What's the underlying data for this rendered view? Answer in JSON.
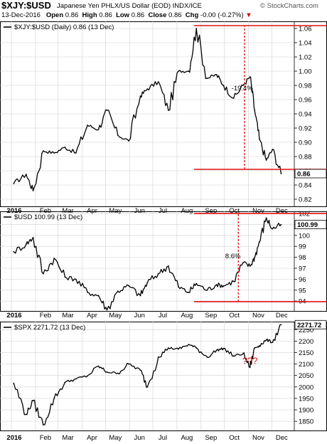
{
  "header": {
    "symbol": "$XJY:$USD",
    "name": "Japanese Yen PHLX/US Dollar (EOD) INDX/ICE",
    "brand": "© StockCharts.com",
    "date": "13-Dec-2016",
    "open_label": "Open",
    "open": "0.86",
    "high_label": "High",
    "high": "0.86",
    "low_label": "Low",
    "low": "0.86",
    "close_label": "Close",
    "close": "0.86",
    "chg_label": "Chg",
    "chg": "-0.00 (-0.27%)",
    "chg_arrow": "▼"
  },
  "colors": {
    "price": "#000000",
    "annotation": "#e01010",
    "grid": "#d0d0d0"
  },
  "chart_data": [
    {
      "type": "line",
      "legend": "$XJY:$USD (Daily) 0.86 (13 Dec)",
      "last_value_label": "0.86",
      "ylim": [
        0.81,
        1.07
      ],
      "yticks": [
        0.82,
        0.84,
        0.86,
        0.88,
        0.9,
        0.92,
        0.94,
        0.96,
        0.98,
        1.0,
        1.02,
        1.04,
        1.06
      ],
      "ytick_labels": [
        "0.82",
        "0.84",
        "0.86",
        "0.88",
        "0.90",
        "0.92",
        "0.94",
        "0.96",
        "0.98",
        "1.00",
        "1.02",
        "1.04",
        "1.06"
      ],
      "x": [
        "2016-01-04",
        "2016-01-20",
        "2016-01-29",
        "2016-02-11",
        "2016-02-25",
        "2016-03-10",
        "2016-03-24",
        "2016-04-08",
        "2016-04-22",
        "2016-05-03",
        "2016-05-17",
        "2016-05-31",
        "2016-06-15",
        "2016-06-24",
        "2016-07-08",
        "2016-07-21",
        "2016-08-03",
        "2016-08-16",
        "2016-08-26",
        "2016-09-09",
        "2016-09-21",
        "2016-09-30",
        "2016-10-13",
        "2016-10-25",
        "2016-11-03",
        "2016-11-09",
        "2016-11-15",
        "2016-11-24",
        "2016-12-02",
        "2016-12-13"
      ],
      "values": [
        0.842,
        0.855,
        0.832,
        0.888,
        0.885,
        0.893,
        0.885,
        0.924,
        0.918,
        0.945,
        0.91,
        0.902,
        0.965,
        0.975,
        0.985,
        0.945,
        1.0,
        1.0,
        1.06,
        0.99,
        0.995,
        0.98,
        0.962,
        0.98,
        0.992,
        0.945,
        0.905,
        0.875,
        0.89,
        0.856
      ],
      "annotations": [
        {
          "kind": "hline",
          "y": 1.064,
          "x_from": "2016-08-23",
          "x_to": "2016-12-30"
        },
        {
          "kind": "hline",
          "y": 0.862,
          "x_from": "2016-08-23",
          "x_to": "2016-12-30"
        },
        {
          "kind": "vline",
          "x": "2016-10-27",
          "y_from": 0.862,
          "y_to": 1.064
        },
        {
          "kind": "label",
          "text": "-19.4%",
          "x": "2016-10-24",
          "y": 0.973
        }
      ]
    },
    {
      "type": "line",
      "legend": "$USD 100.99 (13 Dec)",
      "last_value_label": "100.99",
      "ylim": [
        93.1,
        102.2
      ],
      "yticks": [
        94,
        95,
        96,
        97,
        98,
        99,
        100,
        101,
        102
      ],
      "ytick_labels": [
        "94",
        "95",
        "96",
        "97",
        "98",
        "99",
        "100",
        "101",
        "102"
      ],
      "x": [
        "2016-01-04",
        "2016-01-20",
        "2016-01-29",
        "2016-02-11",
        "2016-02-25",
        "2016-03-10",
        "2016-03-24",
        "2016-04-08",
        "2016-04-22",
        "2016-05-03",
        "2016-05-17",
        "2016-05-31",
        "2016-06-15",
        "2016-06-24",
        "2016-07-08",
        "2016-07-21",
        "2016-08-03",
        "2016-08-16",
        "2016-08-26",
        "2016-09-09",
        "2016-09-21",
        "2016-09-30",
        "2016-10-13",
        "2016-10-25",
        "2016-11-03",
        "2016-11-09",
        "2016-11-15",
        "2016-11-24",
        "2016-12-02",
        "2016-12-13"
      ],
      "values": [
        98.5,
        99.2,
        99.8,
        96.5,
        97.9,
        96.2,
        96.0,
        94.8,
        94.5,
        93.2,
        94.9,
        95.4,
        94.5,
        95.7,
        96.5,
        97.2,
        95.3,
        94.8,
        95.6,
        95.0,
        95.5,
        95.4,
        95.8,
        97.5,
        97.2,
        98.0,
        99.4,
        101.6,
        100.6,
        100.99
      ],
      "annotations": [
        {
          "kind": "hline",
          "y": 102.0,
          "x_from": "2016-08-23",
          "x_to": "2016-12-30"
        },
        {
          "kind": "hline",
          "y": 93.95,
          "x_from": "2016-08-23",
          "x_to": "2016-12-30"
        },
        {
          "kind": "vline",
          "x": "2016-10-19",
          "y_from": 93.95,
          "y_to": 102.0
        },
        {
          "kind": "label",
          "text": "8.6%",
          "x": "2016-10-12",
          "y": 97.9
        }
      ]
    },
    {
      "type": "line",
      "legend": "$SPX 2271.72 (13 Dec)",
      "last_value_label": "2271.72",
      "ylim": [
        1810,
        2285
      ],
      "yticks": [
        1850,
        1900,
        1950,
        2000,
        2050,
        2100,
        2150,
        2200,
        2250
      ],
      "ytick_labels": [
        "1850",
        "1900",
        "1950",
        "2000",
        "2050",
        "2100",
        "2150",
        "2200",
        "2250"
      ],
      "x": [
        "2016-01-04",
        "2016-01-20",
        "2016-01-29",
        "2016-02-11",
        "2016-02-25",
        "2016-03-10",
        "2016-03-24",
        "2016-04-08",
        "2016-04-22",
        "2016-05-03",
        "2016-05-17",
        "2016-05-31",
        "2016-06-15",
        "2016-06-24",
        "2016-07-08",
        "2016-07-21",
        "2016-08-03",
        "2016-08-16",
        "2016-08-26",
        "2016-09-09",
        "2016-09-21",
        "2016-09-30",
        "2016-10-13",
        "2016-10-25",
        "2016-11-03",
        "2016-11-09",
        "2016-11-15",
        "2016-11-24",
        "2016-12-02",
        "2016-12-13"
      ],
      "values": [
        2016,
        1880,
        1940,
        1835,
        1950,
        2020,
        2035,
        2048,
        2091,
        2065,
        2060,
        2100,
        2073,
        2000,
        2130,
        2170,
        2165,
        2185,
        2170,
        2130,
        2160,
        2168,
        2135,
        2145,
        2085,
        2170,
        2180,
        2205,
        2195,
        2271.72
      ],
      "annotations": [
        {
          "kind": "label",
          "text": "???",
          "x": "2016-11-03",
          "y": 2100
        }
      ]
    }
  ],
  "xaxis": {
    "labels": [
      "2016",
      "Feb",
      "Mar",
      "Apr",
      "May",
      "Jun",
      "Jul",
      "Aug",
      "Sep",
      "Oct",
      "Nov",
      "Dec"
    ],
    "dates": [
      "2016-01-01",
      "2016-02-01",
      "2016-03-01",
      "2016-04-01",
      "2016-05-01",
      "2016-06-01",
      "2016-07-01",
      "2016-08-01",
      "2016-09-01",
      "2016-10-01",
      "2016-11-01",
      "2016-12-01"
    ]
  }
}
